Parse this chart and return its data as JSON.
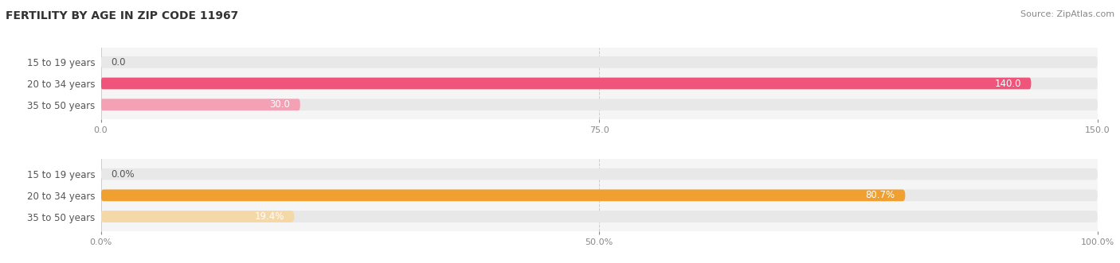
{
  "title": "FERTILITY BY AGE IN ZIP CODE 11967",
  "source": "Source: ZipAtlas.com",
  "top_chart": {
    "categories": [
      "15 to 19 years",
      "20 to 34 years",
      "35 to 50 years"
    ],
    "values": [
      0.0,
      140.0,
      30.0
    ],
    "xlim": [
      0,
      150.0
    ],
    "xticks": [
      0.0,
      75.0,
      150.0
    ],
    "bar_colors": [
      "#f4a0b5",
      "#f0547a",
      "#f4a0b5"
    ],
    "bar_bg_color": "#f0f0f0",
    "value_labels": [
      "0.0",
      "140.0",
      "30.0"
    ]
  },
  "bottom_chart": {
    "categories": [
      "15 to 19 years",
      "20 to 34 years",
      "35 to 50 years"
    ],
    "values": [
      0.0,
      80.7,
      19.4
    ],
    "xlim": [
      0,
      100.0
    ],
    "xticks": [
      0.0,
      50.0,
      100.0
    ],
    "xtick_labels": [
      "0.0%",
      "50.0%",
      "100.0%"
    ],
    "bar_colors": [
      "#f5c87a",
      "#f0a030",
      "#f5d8a8"
    ],
    "bar_bg_color": "#f0f0f0",
    "value_labels": [
      "0.0%",
      "80.7%",
      "19.4%"
    ]
  },
  "label_fontsize": 8.5,
  "title_fontsize": 10,
  "source_fontsize": 8,
  "value_fontsize": 8.5,
  "tick_fontsize": 8,
  "label_color": "#555555",
  "tick_color": "#888888",
  "title_color": "#333333",
  "source_color": "#888888",
  "bar_height": 0.55,
  "bg_color": "#ffffff",
  "panel_bg": "#f5f5f5"
}
